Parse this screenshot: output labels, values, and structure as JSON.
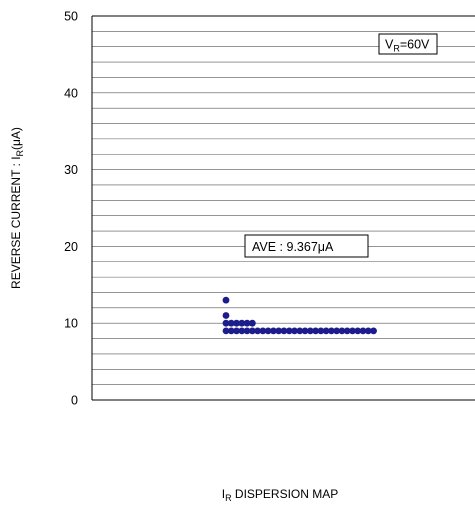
{
  "chart_data": {
    "type": "scatter",
    "title": "",
    "xlabel": "DISPERSION MAP",
    "xlabel_symbol": "I",
    "xlabel_subscript": "R",
    "ylabel_prefix": "REVERSE CURRENT : I",
    "ylabel_subscript": "R",
    "ylabel_unit": "(μA)",
    "ylim": [
      0,
      50
    ],
    "yticks": [
      0,
      10,
      20,
      30,
      40,
      50
    ],
    "grid": "horizontal every 2 μA",
    "grid_step": 2,
    "marker_color": "#1c1c8c",
    "annotations": {
      "condition_symbol": "V",
      "condition_subscript": "R",
      "condition_value": "=60V",
      "average": "AVE : 9.367μA"
    },
    "stacks": [
      {
        "x": 1,
        "values": [
          9,
          10,
          11,
          13
        ]
      },
      {
        "x": 2,
        "values": [
          9,
          10
        ]
      },
      {
        "x": 3,
        "values": [
          9,
          10
        ]
      },
      {
        "x": 4,
        "values": [
          9,
          10
        ]
      },
      {
        "x": 5,
        "values": [
          9,
          10
        ]
      },
      {
        "x": 6,
        "values": [
          9,
          10
        ]
      },
      {
        "x": 7,
        "values": [
          9
        ]
      },
      {
        "x": 8,
        "values": [
          9
        ]
      },
      {
        "x": 9,
        "values": [
          9
        ]
      },
      {
        "x": 10,
        "values": [
          9
        ]
      },
      {
        "x": 11,
        "values": [
          9
        ]
      },
      {
        "x": 12,
        "values": [
          9
        ]
      },
      {
        "x": 13,
        "values": [
          9
        ]
      },
      {
        "x": 14,
        "values": [
          9
        ]
      },
      {
        "x": 15,
        "values": [
          9
        ]
      },
      {
        "x": 16,
        "values": [
          9
        ]
      },
      {
        "x": 17,
        "values": [
          9
        ]
      },
      {
        "x": 18,
        "values": [
          9
        ]
      },
      {
        "x": 19,
        "values": [
          9
        ]
      },
      {
        "x": 20,
        "values": [
          9
        ]
      },
      {
        "x": 21,
        "values": [
          9
        ]
      },
      {
        "x": 22,
        "values": [
          9
        ]
      },
      {
        "x": 23,
        "values": [
          9
        ]
      },
      {
        "x": 24,
        "values": [
          9
        ]
      },
      {
        "x": 25,
        "values": [
          9
        ]
      },
      {
        "x": 26,
        "values": [
          9
        ]
      },
      {
        "x": 27,
        "values": [
          9
        ]
      },
      {
        "x": 28,
        "values": [
          9
        ]
      },
      {
        "x": 29,
        "values": [
          9
        ]
      }
    ]
  }
}
